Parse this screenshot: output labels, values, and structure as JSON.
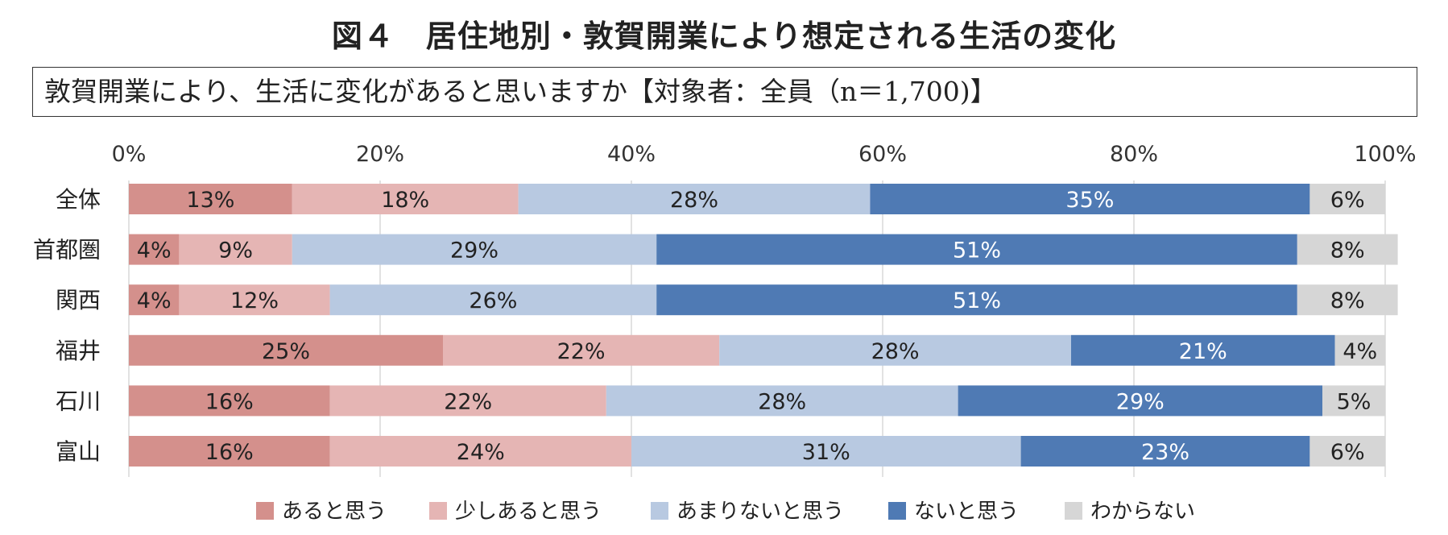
{
  "title": "図４　居住地別・敦賀開業により想定される生活の変化",
  "question": "敦賀開業により、生活に変化があると思いますか【対象者：全員（n＝1,700)】",
  "chart_data": {
    "type": "bar",
    "orientation": "horizontal",
    "stacked": true,
    "categories": [
      "全体",
      "首都圏",
      "関西",
      "福井",
      "石川",
      "富山"
    ],
    "series": [
      {
        "name": "あると思う",
        "color": "#d4908c",
        "label_color": "#222222",
        "values": [
          13,
          4,
          4,
          25,
          16,
          16
        ]
      },
      {
        "name": "少しあると思う",
        "color": "#e5b5b4",
        "label_color": "#222222",
        "values": [
          18,
          9,
          12,
          22,
          22,
          24
        ]
      },
      {
        "name": "あまりないと思う",
        "color": "#b8c9e1",
        "label_color": "#222222",
        "values": [
          28,
          29,
          26,
          28,
          28,
          31
        ]
      },
      {
        "name": "ないと思う",
        "color": "#4f7ab4",
        "label_color": "#ffffff",
        "values": [
          35,
          51,
          51,
          21,
          29,
          23
        ]
      },
      {
        "name": "わからない",
        "color": "#d6d6d6",
        "label_color": "#222222",
        "values": [
          6,
          8,
          8,
          4,
          5,
          6
        ]
      }
    ],
    "x_ticks": [
      "0%",
      "20%",
      "40%",
      "60%",
      "80%",
      "100%"
    ],
    "xlim": [
      0,
      100
    ],
    "axis_position": "top",
    "grid": true,
    "legend": "bottom"
  }
}
